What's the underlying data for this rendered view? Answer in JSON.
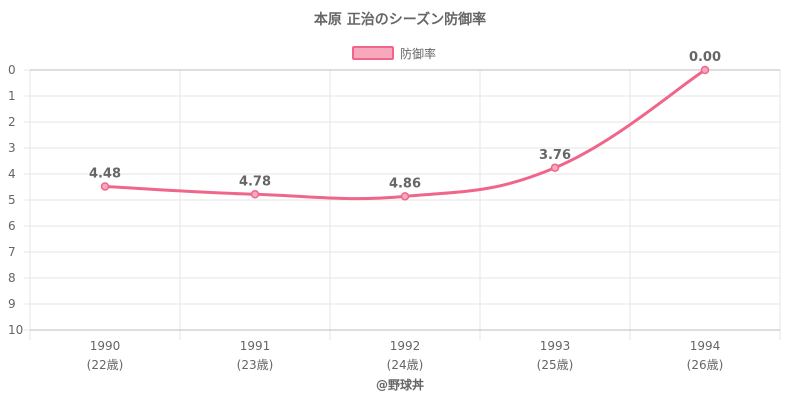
{
  "chart_data": {
    "type": "line",
    "title": "本原 正治のシーズン防御率",
    "legend": {
      "label": "防御率",
      "position": "top"
    },
    "categories": [
      "1990",
      "1991",
      "1992",
      "1993",
      "1994"
    ],
    "sublabels": [
      "(22歳)",
      "(23歳)",
      "(24歳)",
      "(25歳)",
      "(26歳)"
    ],
    "series": [
      {
        "name": "防御率",
        "values": [
          4.48,
          4.78,
          4.86,
          3.76,
          0.0
        ],
        "labels": [
          "4.48",
          "4.78",
          "4.86",
          "3.76",
          "0.00"
        ]
      }
    ],
    "y_ticks": [
      "0",
      "1",
      "2",
      "3",
      "4",
      "5",
      "6",
      "7",
      "8",
      "9",
      "10"
    ],
    "ylim": [
      0,
      10
    ],
    "y_reversed": true,
    "grid": true
  },
  "colors": {
    "line": "#f0668a",
    "fill": "#f7a8bd",
    "text": "#666666",
    "grid": "#e6e6e6"
  },
  "credit": "@野球丼"
}
